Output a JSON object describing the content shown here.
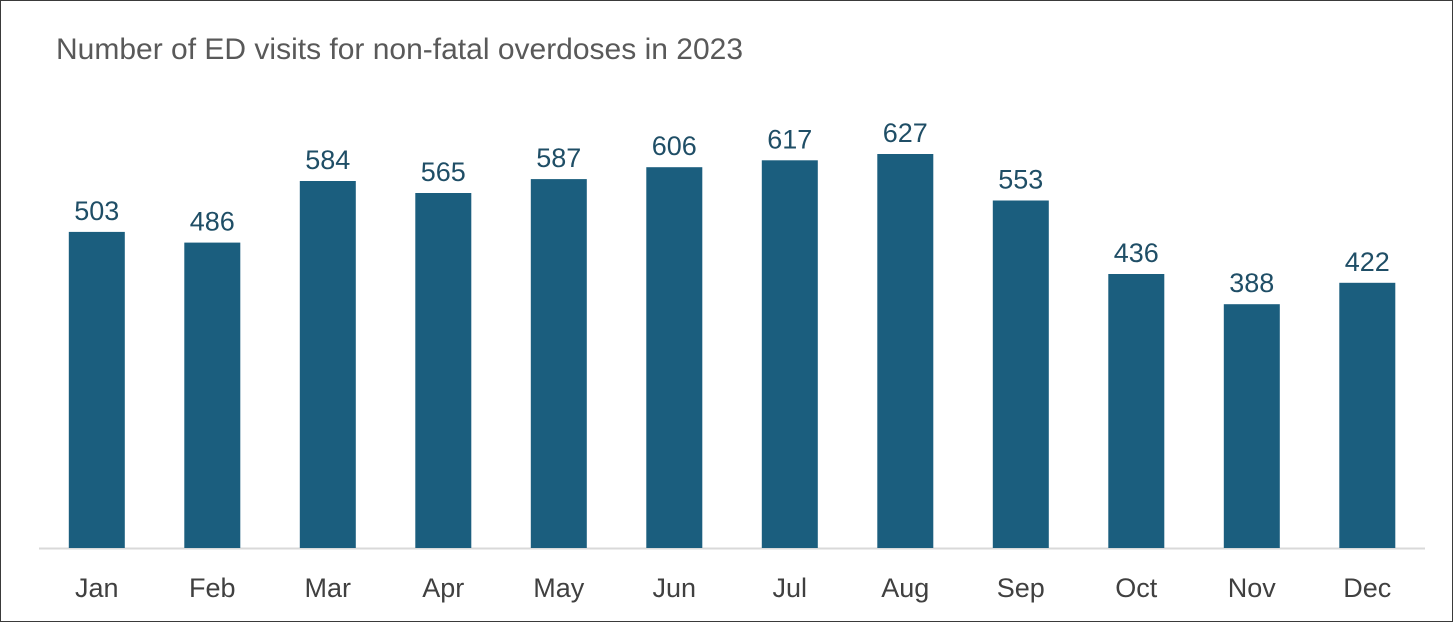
{
  "chart_data": {
    "type": "bar",
    "title": "Number of ED visits for non-fatal overdoses in 2023",
    "xlabel": "",
    "ylabel": "",
    "categories": [
      "Jan",
      "Feb",
      "Mar",
      "Apr",
      "May",
      "Jun",
      "Jul",
      "Aug",
      "Sep",
      "Oct",
      "Nov",
      "Dec"
    ],
    "values": [
      503,
      486,
      584,
      565,
      587,
      606,
      617,
      627,
      553,
      436,
      388,
      422
    ],
    "data_labels": [
      "503",
      "486",
      "584",
      "565",
      "587",
      "606",
      "617",
      "627",
      "553",
      "436",
      "388",
      "422"
    ],
    "ylim": [
      0,
      627
    ],
    "grid": false,
    "legend": "none",
    "bar_color": "#1b5e7e",
    "axis_color": "#d9d9d9"
  }
}
